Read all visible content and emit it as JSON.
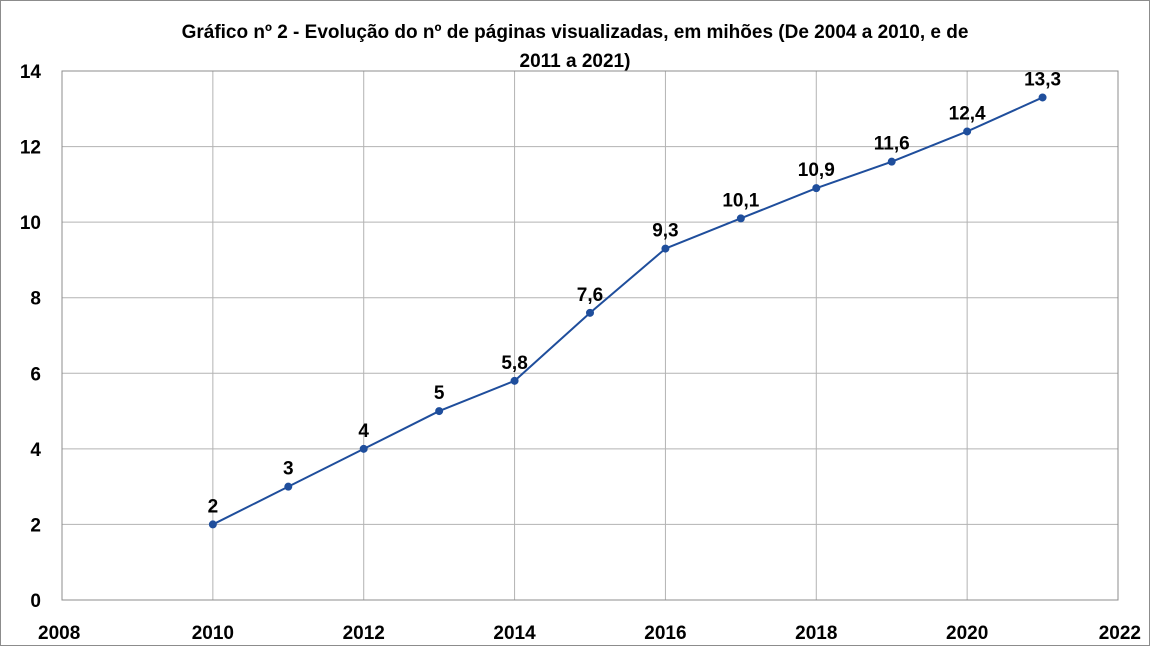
{
  "chart_data": {
    "type": "line",
    "title_lines": [
      "Gráfico nº 2 - Evolução do nº de páginas visualizadas, em mihões (De 2004 a 2010, e de",
      "2011 a 2021)"
    ],
    "xlabel": "",
    "ylabel": "",
    "xlim": [
      2008,
      2022
    ],
    "ylim": [
      0,
      14
    ],
    "x_ticks": [
      2008,
      2010,
      2012,
      2014,
      2016,
      2018,
      2020,
      2022
    ],
    "y_ticks": [
      0,
      2,
      4,
      6,
      8,
      10,
      12,
      14
    ],
    "grid": true,
    "series": [
      {
        "name": "Páginas visualizadas",
        "color": "#1f4e9c",
        "x": [
          2010,
          2011,
          2012,
          2013,
          2014,
          2015,
          2016,
          2017,
          2018,
          2019,
          2020,
          2021
        ],
        "y": [
          2,
          3,
          4,
          5,
          5.8,
          7.6,
          9.3,
          10.1,
          10.9,
          11.6,
          12.4,
          13.3
        ],
        "labels": [
          "2",
          "3",
          "4",
          "5",
          "5,8",
          "7,6",
          "9,3",
          "10,1",
          "10,9",
          "11,6",
          "12,4",
          "13,3"
        ]
      }
    ]
  }
}
